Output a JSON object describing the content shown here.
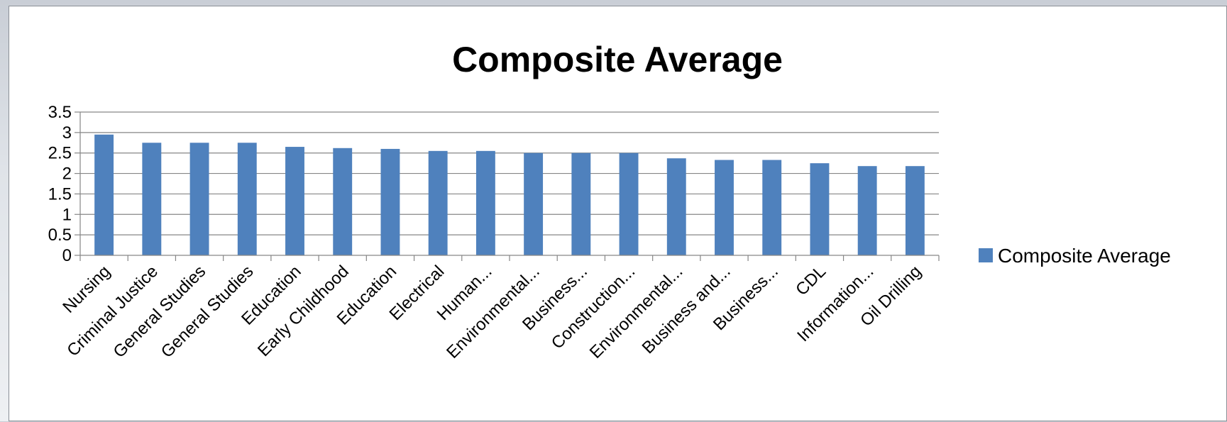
{
  "chart_data": {
    "type": "bar",
    "title": "Composite Average",
    "xlabel": "",
    "ylabel": "",
    "ylim": [
      0,
      3.5
    ],
    "yticks": [
      "0",
      "0.5",
      "1",
      "1.5",
      "2",
      "2.5",
      "3",
      "3.5"
    ],
    "grid": true,
    "legend_position": "right",
    "categories": [
      "Nursing",
      "Criminal Justice",
      "General Studies",
      "General Studies",
      "Education",
      "Early Childhood",
      "Education",
      "Electrical",
      "Human...",
      "Environmental...",
      "Business...",
      "Construction...",
      "Environmental...",
      "Business and...",
      "Business...",
      "CDL",
      "Information...",
      "Oil Drilling"
    ],
    "series": [
      {
        "name": "Composite Average",
        "color": "#4f81bd",
        "values": [
          2.95,
          2.75,
          2.75,
          2.75,
          2.65,
          2.62,
          2.6,
          2.55,
          2.55,
          2.5,
          2.5,
          2.5,
          2.37,
          2.33,
          2.33,
          2.25,
          2.18,
          2.18
        ]
      }
    ]
  }
}
